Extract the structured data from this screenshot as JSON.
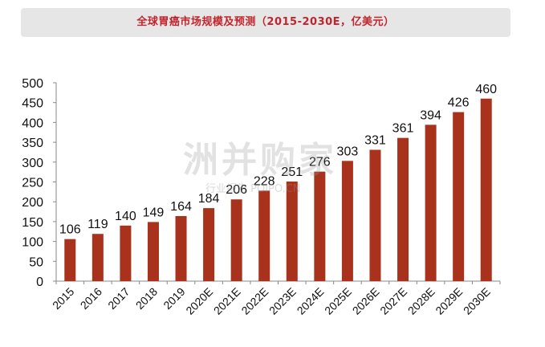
{
  "title": "全球胃癌市场规模及预测（2015-2030E，亿美元）",
  "watermark": {
    "main": "洲并购家",
    "sub": "行业报告 POIPO.CN"
  },
  "colors": {
    "bar": "#a8321c",
    "title": "#c0262d",
    "title_bg": "#e6e6e6"
  },
  "chart_data": {
    "type": "bar",
    "title": "全球胃癌市场规模及预测（2015-2030E，亿美元）",
    "xlabel": "",
    "ylabel": "",
    "categories": [
      "2015",
      "2016",
      "2017",
      "2018",
      "2019",
      "2020E",
      "2021E",
      "2022E",
      "2023E",
      "2024E",
      "2025E",
      "2026E",
      "2027E",
      "2028E",
      "2029E",
      "2030E"
    ],
    "values": [
      106,
      119,
      140,
      149,
      164,
      184,
      206,
      228,
      251,
      276,
      303,
      331,
      361,
      394,
      426,
      460
    ],
    "ylim": [
      0,
      500
    ],
    "yticks": [
      0,
      50,
      100,
      150,
      200,
      250,
      300,
      350,
      400,
      450,
      500
    ],
    "grid": false,
    "legend": "none",
    "data_labels": true
  }
}
